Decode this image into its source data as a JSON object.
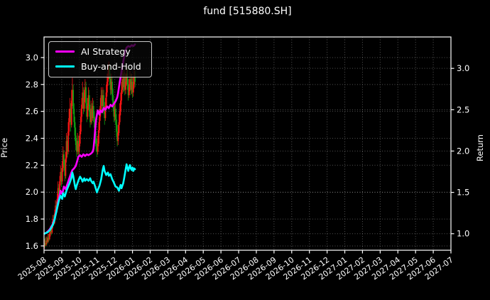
{
  "window": {
    "title": "fund [515880.SH]"
  },
  "chart_data": {
    "type": "candlestick+line",
    "title": "fund [515880.SH]",
    "grid": "dotted, both axes",
    "legend_position": "upper left",
    "left_axis": {
      "label": "Price",
      "tick_labels": [
        "1.6",
        "1.8",
        "2.0",
        "2.2",
        "2.4",
        "2.6",
        "2.8",
        "3.0"
      ],
      "ticks": [
        1.6,
        1.8,
        2.0,
        2.2,
        2.4,
        2.6,
        2.8,
        3.0
      ],
      "ylim": [
        1.568,
        3.153
      ]
    },
    "right_axis": {
      "label": "Return",
      "tick_labels": [
        "1.0",
        "1.5",
        "2.0",
        "2.5",
        "3.0"
      ],
      "ticks": [
        1.0,
        1.5,
        2.0,
        2.5,
        3.0
      ],
      "ylim": [
        0.8,
        3.38
      ]
    },
    "x_axis": {
      "tick_labels": [
        "2025-08",
        "2025-09",
        "2025-10",
        "2025-11",
        "2025-12",
        "2026-01",
        "2026-02",
        "2026-03",
        "2026-04",
        "2026-05",
        "2026-06",
        "2026-07",
        "2026-08",
        "2026-09",
        "2026-10",
        "2026-11",
        "2026-12",
        "2027-01",
        "2027-02",
        "2027-03",
        "2027-04",
        "2027-05",
        "2027-06",
        "2027-07"
      ],
      "data_span_months": 5.15,
      "days_per_month": 20.9
    },
    "legend": [
      {
        "label": "AI Strategy",
        "color": "#ff00ff"
      },
      {
        "label": "Buy-and-Hold",
        "color": "#00ffff"
      }
    ],
    "colors": {
      "up_candle": "#ff1414",
      "down_candle": "#12A012",
      "background": "#000000",
      "text": "#ffffff",
      "grid": "rgba(255,255,255,0.32)",
      "spine": "#ffffff"
    },
    "candles_ohlc": [
      [
        1.6,
        1.65,
        1.58,
        1.62
      ],
      [
        1.62,
        1.66,
        1.59,
        1.61
      ],
      [
        1.61,
        1.67,
        1.6,
        1.64
      ],
      [
        1.64,
        1.67,
        1.61,
        1.63
      ],
      [
        1.63,
        1.69,
        1.62,
        1.66
      ],
      [
        1.66,
        1.69,
        1.63,
        1.65
      ],
      [
        1.65,
        1.72,
        1.64,
        1.69
      ],
      [
        1.69,
        1.75,
        1.67,
        1.72
      ],
      [
        1.72,
        1.75,
        1.68,
        1.7
      ],
      [
        1.7,
        1.78,
        1.69,
        1.75
      ],
      [
        1.75,
        1.83,
        1.73,
        1.8
      ],
      [
        1.8,
        1.83,
        1.75,
        1.77
      ],
      [
        1.77,
        1.87,
        1.76,
        1.84
      ],
      [
        1.84,
        1.94,
        1.82,
        1.9
      ],
      [
        1.9,
        1.93,
        1.84,
        1.87
      ],
      [
        1.87,
        1.99,
        1.85,
        1.95
      ],
      [
        1.95,
        2.08,
        1.93,
        2.03
      ],
      [
        2.03,
        2.06,
        1.95,
        1.98
      ],
      [
        1.98,
        2.12,
        1.96,
        2.08
      ],
      [
        2.08,
        2.2,
        2.05,
        2.15
      ],
      [
        2.15,
        2.18,
        2.04,
        2.08
      ],
      [
        2.08,
        2.23,
        2.06,
        2.18
      ],
      [
        2.18,
        2.34,
        2.15,
        2.28
      ],
      [
        2.28,
        2.31,
        2.16,
        2.2
      ],
      [
        2.2,
        2.24,
        2.08,
        2.12
      ],
      [
        2.12,
        2.3,
        2.1,
        2.25
      ],
      [
        2.25,
        2.44,
        2.22,
        2.38
      ],
      [
        2.38,
        2.42,
        2.26,
        2.3
      ],
      [
        2.3,
        2.52,
        2.28,
        2.45
      ],
      [
        2.45,
        2.62,
        2.42,
        2.55
      ],
      [
        2.55,
        2.7,
        2.52,
        2.62
      ],
      [
        2.62,
        2.66,
        2.45,
        2.5
      ],
      [
        2.5,
        2.76,
        2.48,
        2.68
      ],
      [
        2.68,
        2.85,
        2.64,
        2.76
      ],
      [
        2.76,
        2.8,
        2.58,
        2.62
      ],
      [
        2.62,
        2.66,
        2.48,
        2.52
      ],
      [
        2.52,
        2.56,
        2.38,
        2.42
      ],
      [
        2.42,
        2.48,
        2.31,
        2.35
      ],
      [
        2.35,
        2.4,
        2.26,
        2.3
      ],
      [
        2.3,
        2.44,
        2.28,
        2.38
      ],
      [
        2.38,
        2.42,
        2.26,
        2.3
      ],
      [
        2.3,
        2.42,
        2.28,
        2.36
      ],
      [
        2.36,
        2.5,
        2.34,
        2.45
      ],
      [
        2.45,
        2.62,
        2.43,
        2.56
      ],
      [
        2.56,
        2.7,
        2.52,
        2.65
      ],
      [
        2.65,
        2.82,
        2.62,
        2.74
      ],
      [
        2.74,
        2.78,
        2.58,
        2.62
      ],
      [
        2.62,
        2.76,
        2.6,
        2.7
      ],
      [
        2.7,
        2.84,
        2.67,
        2.78
      ],
      [
        2.78,
        2.82,
        2.62,
        2.66
      ],
      [
        2.66,
        2.7,
        2.52,
        2.56
      ],
      [
        2.56,
        2.7,
        2.54,
        2.64
      ],
      [
        2.64,
        2.78,
        2.61,
        2.72
      ],
      [
        2.72,
        2.76,
        2.56,
        2.6
      ],
      [
        2.6,
        2.65,
        2.48,
        2.52
      ],
      [
        2.52,
        2.68,
        2.5,
        2.62
      ],
      [
        2.62,
        2.66,
        2.51,
        2.55
      ],
      [
        2.55,
        2.7,
        2.53,
        2.64
      ],
      [
        2.64,
        2.68,
        2.52,
        2.56
      ],
      [
        2.56,
        2.6,
        2.44,
        2.48
      ],
      [
        2.48,
        2.52,
        2.36,
        2.4
      ],
      [
        2.4,
        2.45,
        2.3,
        2.34
      ],
      [
        2.34,
        2.39,
        2.26,
        2.3
      ],
      [
        2.3,
        2.42,
        2.28,
        2.36
      ],
      [
        2.36,
        2.52,
        2.34,
        2.46
      ],
      [
        2.46,
        2.62,
        2.44,
        2.56
      ],
      [
        2.56,
        2.7,
        2.53,
        2.64
      ],
      [
        2.64,
        2.78,
        2.61,
        2.72
      ],
      [
        2.72,
        2.76,
        2.58,
        2.64
      ],
      [
        2.64,
        2.78,
        2.61,
        2.72
      ],
      [
        2.72,
        2.76,
        2.58,
        2.62
      ],
      [
        2.62,
        2.67,
        2.5,
        2.55
      ],
      [
        2.55,
        2.7,
        2.53,
        2.64
      ],
      [
        2.64,
        2.8,
        2.62,
        2.74
      ],
      [
        2.74,
        2.88,
        2.71,
        2.82
      ],
      [
        2.82,
        2.95,
        2.79,
        2.88
      ],
      [
        2.88,
        2.97,
        2.84,
        2.92
      ],
      [
        2.92,
        2.95,
        2.8,
        2.84
      ],
      [
        2.84,
        2.88,
        2.72,
        2.76
      ],
      [
        2.76,
        2.88,
        2.73,
        2.82
      ],
      [
        2.82,
        2.86,
        2.68,
        2.72
      ],
      [
        2.72,
        2.77,
        2.6,
        2.64
      ],
      [
        2.64,
        2.68,
        2.52,
        2.56
      ],
      [
        2.56,
        2.68,
        2.53,
        2.62
      ],
      [
        2.62,
        2.66,
        2.5,
        2.54
      ],
      [
        2.54,
        2.58,
        2.41,
        2.45
      ],
      [
        2.45,
        2.5,
        2.34,
        2.38
      ],
      [
        2.38,
        2.5,
        2.35,
        2.44
      ],
      [
        2.44,
        2.58,
        2.42,
        2.52
      ],
      [
        2.52,
        2.66,
        2.5,
        2.6
      ],
      [
        2.6,
        2.74,
        2.57,
        2.68
      ],
      [
        2.68,
        2.82,
        2.65,
        2.76
      ],
      [
        2.76,
        2.9,
        2.73,
        2.84
      ],
      [
        2.84,
        2.88,
        2.74,
        2.78
      ],
      [
        2.78,
        2.91,
        2.75,
        2.85
      ],
      [
        2.85,
        2.89,
        2.72,
        2.76
      ],
      [
        2.76,
        2.88,
        2.73,
        2.82
      ],
      [
        2.82,
        2.94,
        2.79,
        2.88
      ],
      [
        2.88,
        2.92,
        2.76,
        2.8
      ],
      [
        2.8,
        2.84,
        2.68,
        2.72
      ],
      [
        2.72,
        2.84,
        2.7,
        2.78
      ],
      [
        2.78,
        2.9,
        2.75,
        2.84
      ],
      [
        2.84,
        2.88,
        2.72,
        2.76
      ],
      [
        2.76,
        2.88,
        2.73,
        2.82
      ],
      [
        2.82,
        2.86,
        2.7,
        2.74
      ],
      [
        2.74,
        2.86,
        2.71,
        2.8
      ],
      [
        2.8,
        2.92,
        2.77,
        2.86
      ],
      [
        2.86,
        2.9,
        2.78,
        2.82
      ]
    ],
    "series": [
      {
        "name": "AI Strategy",
        "axis": "return",
        "color": "#ff00ff",
        "points": [
          [
            0,
            1.0
          ],
          [
            2,
            1.01
          ],
          [
            4,
            1.03
          ],
          [
            6,
            1.05
          ],
          [
            8,
            1.08
          ],
          [
            10,
            1.12
          ],
          [
            12,
            1.18
          ],
          [
            14,
            1.27
          ],
          [
            16,
            1.38
          ],
          [
            18,
            1.47
          ],
          [
            19,
            1.52
          ],
          [
            21,
            1.48
          ],
          [
            23,
            1.57
          ],
          [
            25,
            1.54
          ],
          [
            27,
            1.6
          ],
          [
            29,
            1.66
          ],
          [
            31,
            1.72
          ],
          [
            33,
            1.77
          ],
          [
            35,
            1.79
          ],
          [
            37,
            1.82
          ],
          [
            39,
            1.89
          ],
          [
            40,
            1.93
          ],
          [
            42,
            1.95
          ],
          [
            44,
            1.93
          ],
          [
            46,
            1.96
          ],
          [
            48,
            1.94
          ],
          [
            50,
            1.96
          ],
          [
            52,
            1.95
          ],
          [
            55,
            1.97
          ],
          [
            57,
            1.99
          ],
          [
            58,
            2.03
          ],
          [
            59,
            2.14
          ],
          [
            60,
            2.27
          ],
          [
            61,
            2.38
          ],
          [
            62,
            2.44
          ],
          [
            63,
            2.49
          ],
          [
            64,
            2.46
          ],
          [
            65,
            2.44
          ],
          [
            66,
            2.49
          ],
          [
            68,
            2.47
          ],
          [
            70,
            2.52
          ],
          [
            72,
            2.5
          ],
          [
            74,
            2.54
          ],
          [
            76,
            2.52
          ],
          [
            78,
            2.56
          ],
          [
            80,
            2.54
          ],
          [
            82,
            2.57
          ],
          [
            84,
            2.6
          ],
          [
            86,
            2.65
          ],
          [
            87,
            2.7
          ],
          [
            88,
            2.77
          ],
          [
            89,
            2.84
          ],
          [
            90,
            2.9
          ],
          [
            91,
            2.96
          ],
          [
            92,
            3.02
          ],
          [
            93,
            3.08
          ],
          [
            94,
            3.13
          ],
          [
            95,
            3.18
          ],
          [
            96,
            3.22
          ],
          [
            97,
            3.25
          ],
          [
            99,
            3.27
          ],
          [
            101,
            3.26
          ],
          [
            103,
            3.28
          ],
          [
            105,
            3.27
          ],
          [
            107,
            3.29
          ]
        ]
      },
      {
        "name": "Buy-and-Hold",
        "axis": "return",
        "color": "#00ffff",
        "points": [
          [
            0,
            1.0
          ],
          [
            2,
            1.01
          ],
          [
            4,
            1.02
          ],
          [
            6,
            1.04
          ],
          [
            8,
            1.07
          ],
          [
            10,
            1.11
          ],
          [
            12,
            1.17
          ],
          [
            13,
            1.22
          ],
          [
            15,
            1.31
          ],
          [
            17,
            1.4
          ],
          [
            19,
            1.46
          ],
          [
            21,
            1.42
          ],
          [
            22,
            1.49
          ],
          [
            24,
            1.45
          ],
          [
            26,
            1.52
          ],
          [
            28,
            1.57
          ],
          [
            30,
            1.62
          ],
          [
            32,
            1.68
          ],
          [
            33,
            1.74
          ],
          [
            34,
            1.7
          ],
          [
            36,
            1.58
          ],
          [
            37,
            1.54
          ],
          [
            38,
            1.58
          ],
          [
            40,
            1.64
          ],
          [
            42,
            1.69
          ],
          [
            44,
            1.66
          ],
          [
            45,
            1.63
          ],
          [
            47,
            1.67
          ],
          [
            48,
            1.64
          ],
          [
            50,
            1.66
          ],
          [
            52,
            1.64
          ],
          [
            54,
            1.67
          ],
          [
            55,
            1.64
          ],
          [
            57,
            1.61
          ],
          [
            58,
            1.63
          ],
          [
            60,
            1.57
          ],
          [
            62,
            1.5
          ],
          [
            63,
            1.53
          ],
          [
            65,
            1.58
          ],
          [
            67,
            1.66
          ],
          [
            69,
            1.78
          ],
          [
            70,
            1.82
          ],
          [
            71,
            1.76
          ],
          [
            73,
            1.71
          ],
          [
            75,
            1.74
          ],
          [
            76,
            1.7
          ],
          [
            78,
            1.72
          ],
          [
            80,
            1.66
          ],
          [
            82,
            1.62
          ],
          [
            84,
            1.57
          ],
          [
            86,
            1.56
          ],
          [
            88,
            1.52
          ],
          [
            89,
            1.56
          ],
          [
            90,
            1.59
          ],
          [
            91,
            1.55
          ],
          [
            93,
            1.61
          ],
          [
            94,
            1.66
          ],
          [
            95,
            1.72
          ],
          [
            96,
            1.78
          ],
          [
            97,
            1.84
          ],
          [
            98,
            1.8
          ],
          [
            99,
            1.76
          ],
          [
            100,
            1.8
          ],
          [
            101,
            1.83
          ],
          [
            102,
            1.79
          ],
          [
            103,
            1.77
          ],
          [
            104,
            1.8
          ],
          [
            105,
            1.76
          ],
          [
            106,
            1.79
          ],
          [
            107,
            1.78
          ]
        ]
      }
    ]
  }
}
